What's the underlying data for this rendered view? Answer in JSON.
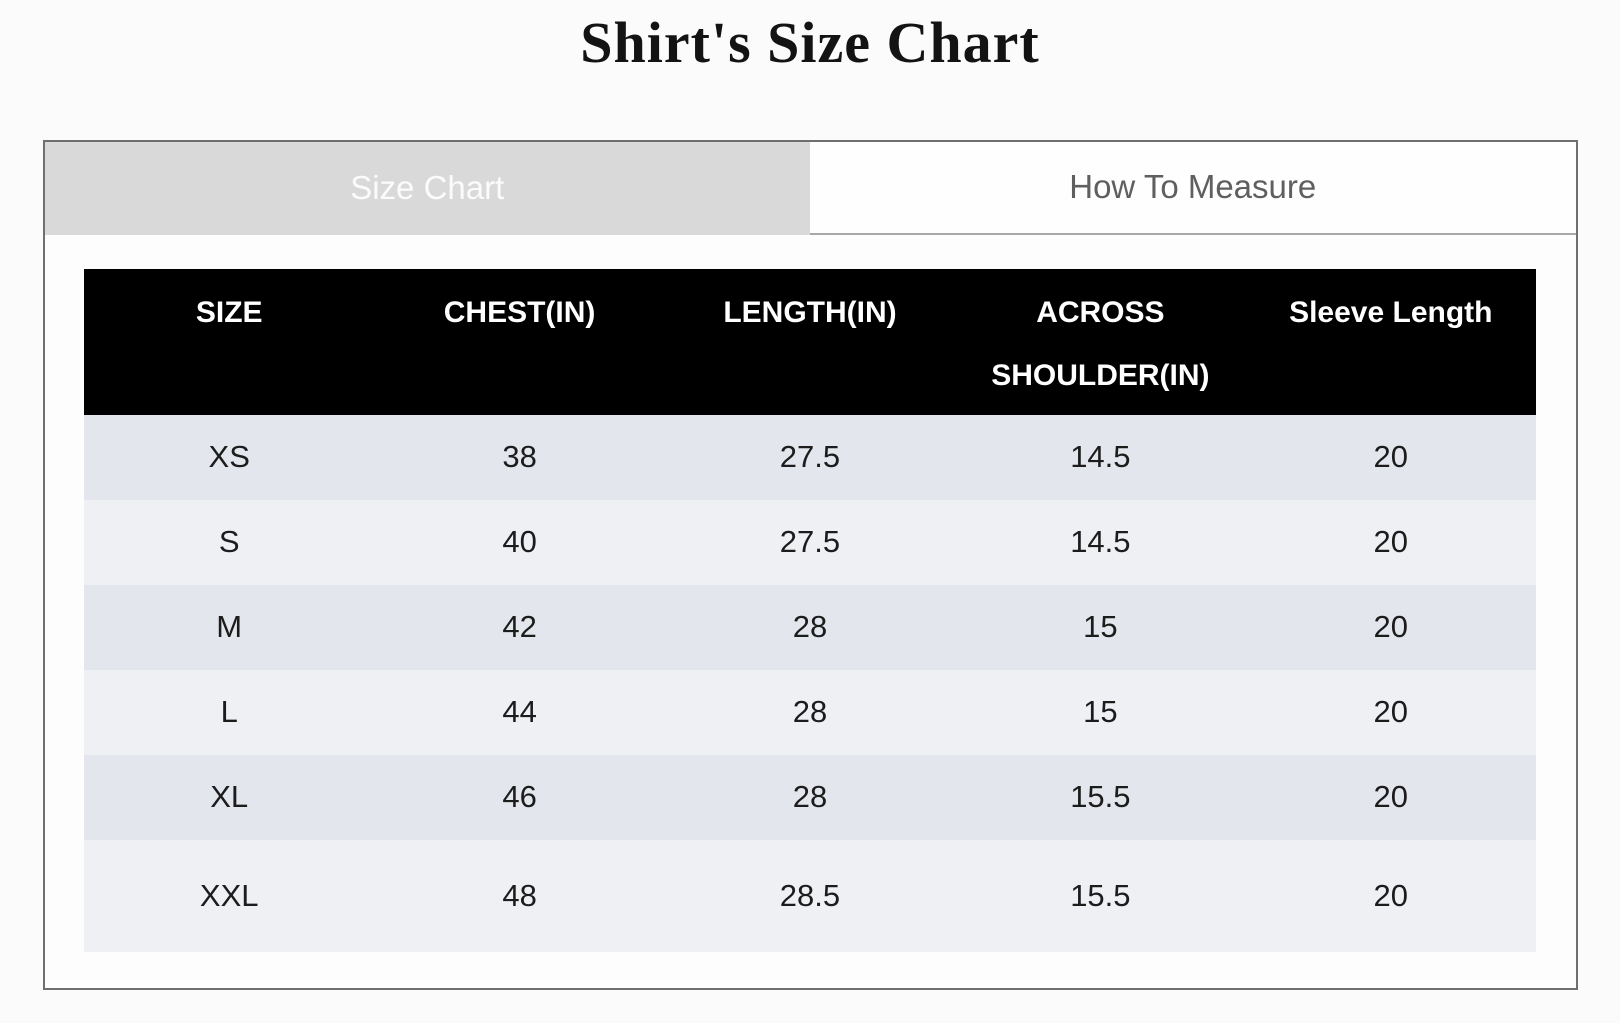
{
  "page": {
    "title": "Shirt's Size Chart"
  },
  "tabs": [
    {
      "label": "Size Chart",
      "active": true
    },
    {
      "label": "How To Measure",
      "active": false
    }
  ],
  "size_table": {
    "columns": [
      "SIZE",
      "CHEST(IN)",
      "LENGTH(IN)",
      "ACROSS SHOULDER(IN)",
      "Sleeve Length"
    ],
    "rows": [
      [
        "XS",
        "38",
        "27.5",
        "14.5",
        "20"
      ],
      [
        "S",
        "40",
        "27.5",
        "14.5",
        "20"
      ],
      [
        "M",
        "42",
        "28",
        "15",
        "20"
      ],
      [
        "L",
        "44",
        "28",
        "15",
        "20"
      ],
      [
        "XL",
        "46",
        "28",
        "15.5",
        "20"
      ],
      [
        "XXL",
        "48",
        "28.5",
        "15.5",
        "20"
      ]
    ]
  },
  "colors": {
    "page_background": "#fbfbfb",
    "panel_border": "#6f6f6f",
    "active_tab_background": "#d9d9d9",
    "active_tab_text": "#fbfbfb",
    "inactive_tab_text": "#5f5f5f",
    "table_header_background": "#000000",
    "table_header_text": "#ffffff",
    "row_dark": "#e4e6ed",
    "row_light": "#eff0f4"
  }
}
